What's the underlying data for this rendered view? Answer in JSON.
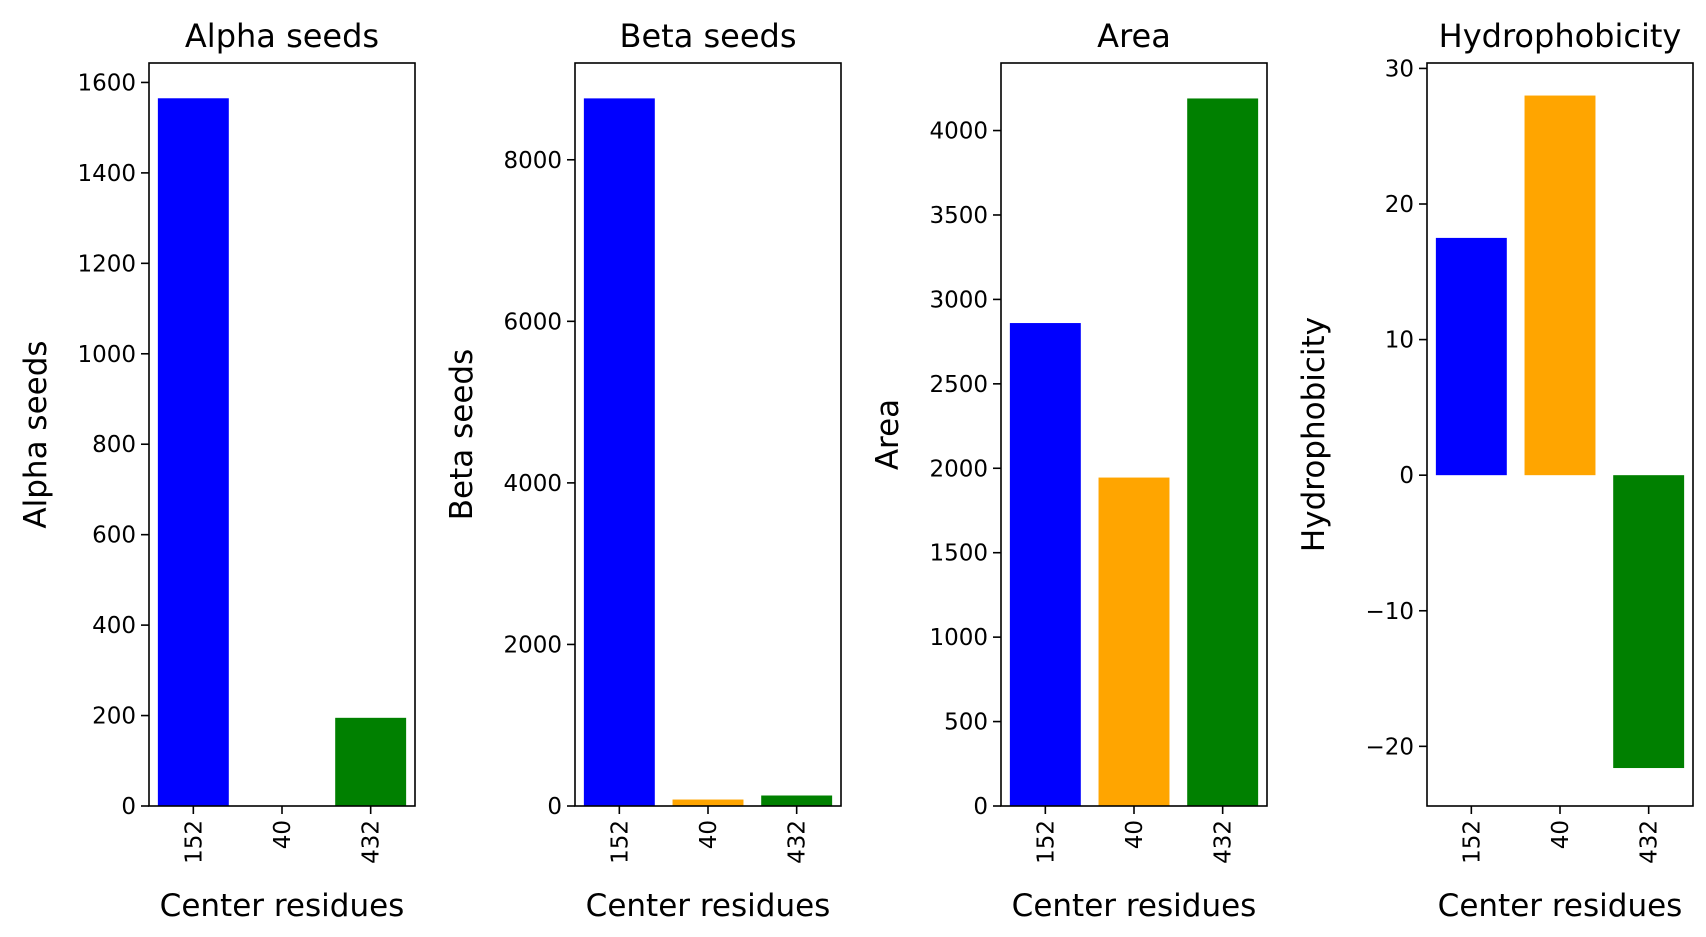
{
  "colors": {
    "152": "#0000ff",
    "40": "#ffa500",
    "432": "#008000",
    "axis": "#000000"
  },
  "chart_data": [
    {
      "type": "bar",
      "title": "Alpha seeds",
      "xlabel": "Center residues",
      "ylabel": "Alpha seeds",
      "categories": [
        "152",
        "40",
        "432"
      ],
      "values": [
        1565,
        0,
        195
      ],
      "ylim": [
        0,
        1643
      ],
      "yticks": [
        0,
        200,
        400,
        600,
        800,
        1000,
        1200,
        1400,
        1600
      ],
      "ytick_labels": [
        "0",
        "200",
        "400",
        "600",
        "800",
        "1000",
        "1200",
        "1400",
        "1600"
      ],
      "grid": false,
      "legend": "none"
    },
    {
      "type": "bar",
      "title": "Beta seeds",
      "xlabel": "Center residues",
      "ylabel": "Beta seeds",
      "categories": [
        "152",
        "40",
        "432"
      ],
      "values": [
        8760,
        80,
        130
      ],
      "ylim": [
        0,
        9198
      ],
      "yticks": [
        0,
        2000,
        4000,
        6000,
        8000
      ],
      "ytick_labels": [
        "0",
        "2000",
        "4000",
        "6000",
        "8000"
      ],
      "grid": false,
      "legend": "none"
    },
    {
      "type": "bar",
      "title": "Area",
      "xlabel": "Center residues",
      "ylabel": "Area",
      "categories": [
        "152",
        "40",
        "432"
      ],
      "values": [
        2860,
        1945,
        4190
      ],
      "ylim": [
        0,
        4400
      ],
      "yticks": [
        0,
        500,
        1000,
        1500,
        2000,
        2500,
        3000,
        3500,
        4000
      ],
      "ytick_labels": [
        "0",
        "500",
        "1000",
        "1500",
        "2000",
        "2500",
        "3000",
        "3500",
        "4000"
      ],
      "grid": false,
      "legend": "none"
    },
    {
      "type": "bar",
      "title": "Hydrophobicity",
      "xlabel": "Center residues",
      "ylabel": "Hydrophobicity",
      "categories": [
        "152",
        "40",
        "432"
      ],
      "values": [
        17.5,
        28.0,
        -21.6
      ],
      "ylim": [
        -24.4,
        30.4
      ],
      "yticks": [
        -20,
        -10,
        0,
        10,
        20,
        30
      ],
      "ytick_labels": [
        "−20",
        "−10",
        "0",
        "10",
        "20",
        "30"
      ],
      "grid": false,
      "legend": "none"
    }
  ]
}
